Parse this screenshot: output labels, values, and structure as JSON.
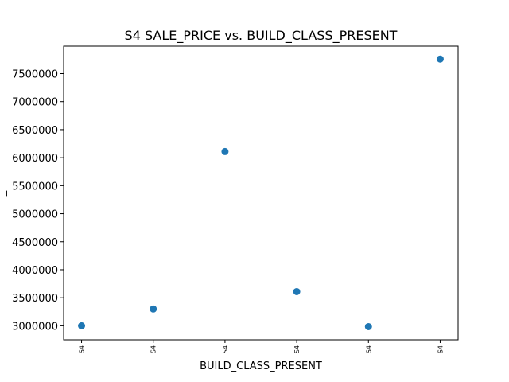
{
  "chart_data": {
    "type": "scatter",
    "title": "S4 SALE_PRICE vs. BUILD_CLASS_PRESENT",
    "xlabel": "BUILD_CLASS_PRESENT",
    "ylabel": "_",
    "x_tick_labels": [
      "S4",
      "S4",
      "S4",
      "S4",
      "S4",
      "S4"
    ],
    "y_ticks": [
      3000000,
      3500000,
      4000000,
      4500000,
      5000000,
      5500000,
      6000000,
      6500000,
      7000000,
      7500000
    ],
    "ylim": [
      2750000,
      7990000
    ],
    "points": [
      {
        "x": "S4",
        "y": 3000000
      },
      {
        "x": "S4",
        "y": 3300000
      },
      {
        "x": "S4",
        "y": 6110000
      },
      {
        "x": "S4",
        "y": 3610000
      },
      {
        "x": "S4",
        "y": 2985000
      },
      {
        "x": "S4",
        "y": 7760000
      }
    ],
    "marker_color": "#1f77b4",
    "grid": false,
    "legend": "none"
  }
}
